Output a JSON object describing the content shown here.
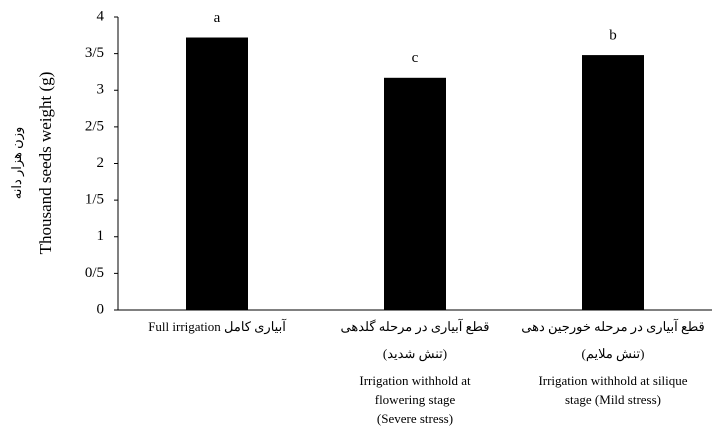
{
  "chart_data": {
    "type": "bar",
    "y_label": "Thousand seeds weight (g)",
    "y_label_fa": "وزن هزار دانه",
    "categories": [
      [
        "Full irrigation آبیاری کامل"
      ],
      [
        "قطع آبیاری در مرحله گلدهی",
        "(تنش شدید)",
        "Irrigation withhold at",
        "flowering stage",
        "(Severe stress)"
      ],
      [
        "قطع آبیاری در مرحله خورجین دهی",
        "(تنش ملایم)",
        "Irrigation withhold at silique",
        "stage (Mild stress)"
      ]
    ],
    "values": [
      3.72,
      3.17,
      3.48
    ],
    "annotations": [
      "a",
      "c",
      "b"
    ],
    "color": "#000000",
    "ylim": [
      0,
      4
    ],
    "yticks": [
      0,
      {
        "value": 0.5,
        "label": "0/5"
      },
      1,
      {
        "value": 1.5,
        "label": "1/5"
      },
      2,
      {
        "value": 2.5,
        "label": "2/5"
      },
      3,
      {
        "value": 3.5,
        "label": "3/5"
      },
      4
    ]
  }
}
